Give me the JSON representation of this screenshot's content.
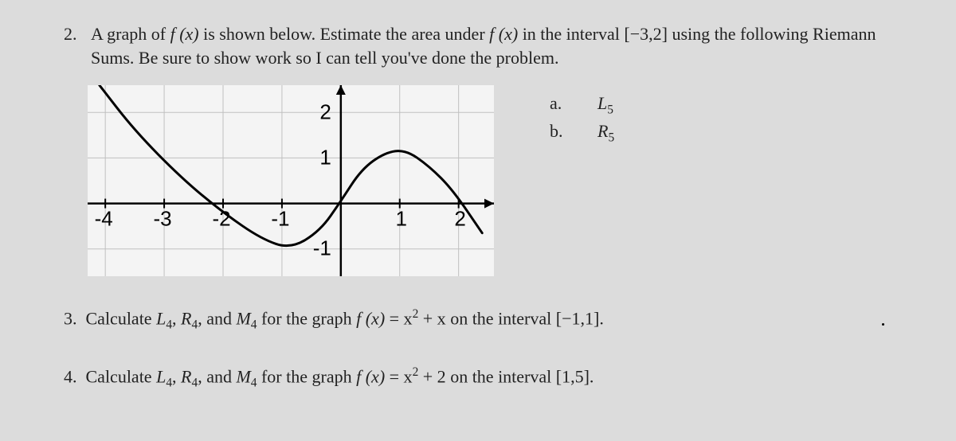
{
  "q2": {
    "number": "2.",
    "text_pre": "A graph of ",
    "fx1": "f (x)",
    "text_mid1": " is shown below. Estimate the area under ",
    "fx2": "f (x)",
    "text_mid2": " in the interval ",
    "interval": "[−3,2]",
    "text_mid3": " using the following Riemann Sums. Be sure to show work so I can tell you've done the problem.",
    "sub_a_label": "a.",
    "sub_a_value": "L",
    "sub_a_subscript": "5",
    "sub_b_label": "b.",
    "sub_b_value": "R",
    "sub_b_subscript": "5"
  },
  "graph": {
    "background_color": "#f4f4f4",
    "grid_color": "#c0c0c0",
    "axis_color": "#000000",
    "curve_color": "#000000",
    "x_labels": [
      "-4",
      "-3",
      "-2",
      "-1",
      "1",
      "2"
    ],
    "x_positions": [
      -4,
      -3,
      -2,
      -1,
      1,
      2
    ],
    "y_labels": [
      "2",
      "1",
      "-1"
    ],
    "y_positions": [
      2,
      1,
      -1
    ],
    "xlim": [
      -4.3,
      2.6
    ],
    "ylim": [
      -1.6,
      2.6
    ],
    "curve": [
      {
        "x": -4.1,
        "y": 2.6
      },
      {
        "x": -3.5,
        "y": 1.6
      },
      {
        "x": -2.7,
        "y": 0.55
      },
      {
        "x": -2.0,
        "y": -0.2
      },
      {
        "x": -1.35,
        "y": -0.78
      },
      {
        "x": -0.85,
        "y": -1.0
      },
      {
        "x": -0.35,
        "y": -0.6
      },
      {
        "x": 0.0,
        "y": 0.05
      },
      {
        "x": 0.35,
        "y": 0.75
      },
      {
        "x": 0.75,
        "y": 1.12
      },
      {
        "x": 1.1,
        "y": 1.18
      },
      {
        "x": 1.5,
        "y": 0.82
      },
      {
        "x": 1.9,
        "y": 0.3
      },
      {
        "x": 2.4,
        "y": -0.65
      }
    ],
    "curve_width": 3
  },
  "q3": {
    "number": "3.",
    "pre": "Calculate ",
    "L": "L",
    "Lsub": "4",
    "sep1": ", ",
    "R": "R",
    "Rsub": "4",
    "sep2": ", and ",
    "M": "M",
    "Msub": "4",
    "mid": " for the graph ",
    "fx": "f (x)",
    "eq": " = x",
    "sq": "2",
    "plus": " + x",
    "tail": " on the interval ",
    "interval": "[−1,1]",
    "dot": "."
  },
  "q4": {
    "number": "4.",
    "pre": "Calculate ",
    "L": "L",
    "Lsub": "4",
    "sep1": ", ",
    "R": "R",
    "Rsub": "4",
    "sep2": ", and ",
    "M": "M",
    "Msub": "4",
    "mid": " for the graph ",
    "fx": "f (x)",
    "eq": " = x",
    "sq": "2",
    "plus": " + 2",
    "tail": " on the interval ",
    "interval": "[1,5]",
    "dot": "."
  }
}
